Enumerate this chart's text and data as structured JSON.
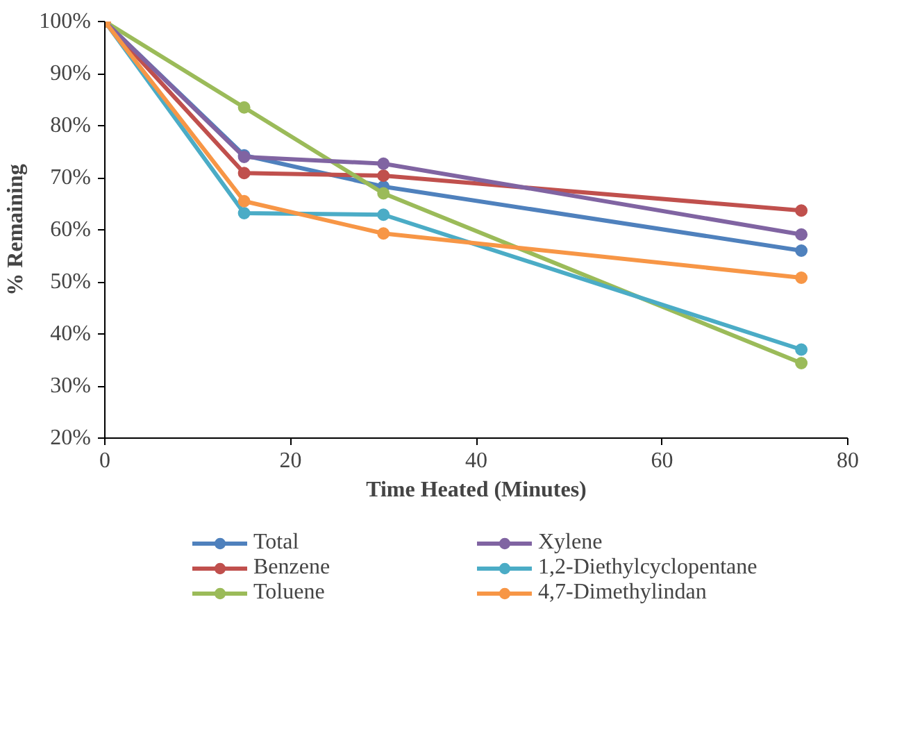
{
  "chart_data": {
    "type": "line",
    "xlabel": "Time Heated (Minutes)",
    "ylabel": "% Remaining",
    "x": [
      0,
      15,
      30,
      75
    ],
    "series": [
      {
        "name": "Total",
        "color": "#4f81bd",
        "values": [
          100,
          74.3,
          68.3,
          56.0
        ]
      },
      {
        "name": "Benzene",
        "color": "#c0504d",
        "values": [
          100,
          70.9,
          70.4,
          63.7
        ]
      },
      {
        "name": "Toluene",
        "color": "#9bbb59",
        "values": [
          100,
          83.5,
          67.0,
          34.4
        ]
      },
      {
        "name": "Xylene",
        "color": "#8064a2",
        "values": [
          100,
          74.0,
          72.7,
          59.1
        ]
      },
      {
        "name": "1,2-Diethylcyclopentane",
        "color": "#4bacc6",
        "values": [
          100,
          63.2,
          62.9,
          37.0
        ]
      },
      {
        "name": "4,7-Dimethylindan",
        "color": "#f79646",
        "values": [
          100,
          65.5,
          59.3,
          50.8
        ]
      }
    ],
    "xlim": [
      0,
      80
    ],
    "xticks": [
      0,
      20,
      40,
      60,
      80
    ],
    "ylim": [
      20,
      100
    ],
    "yticks": [
      {
        "value": 20,
        "label": "20%"
      },
      {
        "value": 30,
        "label": "30%"
      },
      {
        "value": 40,
        "label": "40%"
      },
      {
        "value": 50,
        "label": "50%"
      },
      {
        "value": 60,
        "label": "60%"
      },
      {
        "value": 70,
        "label": "70%"
      },
      {
        "value": 80,
        "label": "80%"
      },
      {
        "value": 90,
        "label": "90%"
      },
      {
        "value": 100,
        "label": "100%"
      }
    ],
    "grid": false,
    "legend": "bottom",
    "marker": "circle",
    "line_style": "solid"
  }
}
